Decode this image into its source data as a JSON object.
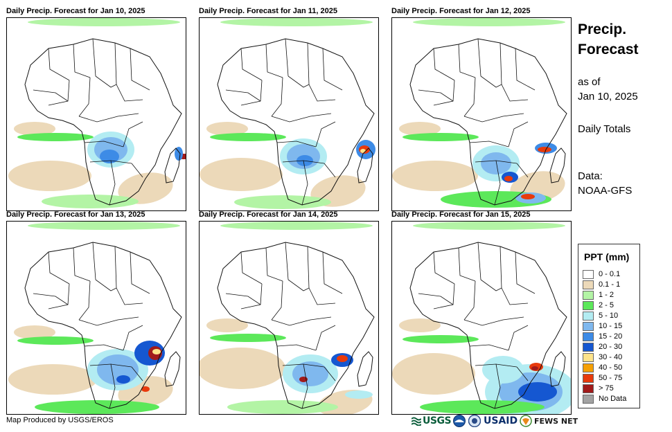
{
  "panels": [
    {
      "title": "Daily Precip. Forecast for Jan 10, 2025",
      "date": "Jan 10, 2025"
    },
    {
      "title": "Daily Precip. Forecast for Jan 11, 2025",
      "date": "Jan 11, 2025"
    },
    {
      "title": "Daily Precip. Forecast for Jan 12, 2025",
      "date": "Jan 12, 2025"
    },
    {
      "title": "Daily Precip. Forecast for Jan 13, 2025",
      "date": "Jan 13, 2025"
    },
    {
      "title": "Daily Precip. Forecast for Jan 14, 2025",
      "date": "Jan 14, 2025"
    },
    {
      "title": "Daily Precip. Forecast for Jan 15, 2025",
      "date": "Jan 15, 2025"
    }
  ],
  "sidebar": {
    "title_line1": "Precip.",
    "title_line2": "Forecast",
    "as_of_label": "as of",
    "as_of_date": "Jan 10, 2025",
    "totals_label": "Daily Totals",
    "data_label": "Data:",
    "data_source": "NOAA-GFS"
  },
  "legend": {
    "title": "PPT (mm)",
    "items": [
      {
        "label": "0 - 0.1",
        "color": "#ffffff"
      },
      {
        "label": "0.1 - 1",
        "color": "#ecd9b9"
      },
      {
        "label": "1 - 2",
        "color": "#b3f4a5"
      },
      {
        "label": "2 - 5",
        "color": "#5ce85a"
      },
      {
        "label": "5 - 10",
        "color": "#b3ecf2"
      },
      {
        "label": "10 - 15",
        "color": "#7fb8ee"
      },
      {
        "label": "15 - 20",
        "color": "#3d8be6"
      },
      {
        "label": "20 - 30",
        "color": "#1557d1"
      },
      {
        "label": "30 - 40",
        "color": "#fde38a"
      },
      {
        "label": "40 - 50",
        "color": "#f5a005"
      },
      {
        "label": "50 - 75",
        "color": "#e83a0c"
      },
      {
        "label": "> 75",
        "color": "#a11a1a"
      },
      {
        "label": "No Data",
        "color": "#a3a3a3"
      }
    ]
  },
  "footer": {
    "credit": "Map Produced by USGS/EROS"
  },
  "logos": {
    "usgs": "USGS",
    "usaid": "USAID",
    "fews": "FEWS NET"
  }
}
